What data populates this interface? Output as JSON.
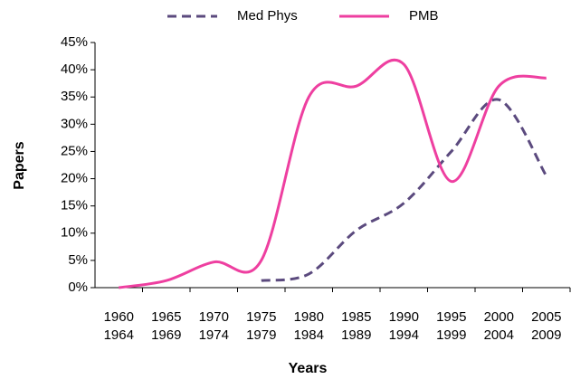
{
  "chart_data": {
    "type": "line",
    "categories": [
      [
        "1960",
        "1964"
      ],
      [
        "1965",
        "1969"
      ],
      [
        "1970",
        "1974"
      ],
      [
        "1975",
        "1979"
      ],
      [
        "1980",
        "1984"
      ],
      [
        "1985",
        "1989"
      ],
      [
        "1990",
        "1994"
      ],
      [
        "1995",
        "1999"
      ],
      [
        "2000",
        "2004"
      ],
      [
        "2005",
        "2009"
      ]
    ],
    "series": [
      {
        "name": "Med Phys",
        "color": "#5b4a7e",
        "dashed": true,
        "values": [
          null,
          null,
          null,
          1.3,
          2.5,
          10.5,
          15.5,
          25,
          34.5,
          20.5
        ]
      },
      {
        "name": "PMB",
        "color": "#ee3fa0",
        "dashed": false,
        "values": [
          0,
          1.3,
          4.7,
          5,
          35,
          37,
          41,
          19.5,
          37,
          38.5
        ]
      }
    ],
    "ylabel": "Papers",
    "xlabel": "Years",
    "ylim": [
      0,
      45
    ],
    "yticks": [
      {
        "value": 0,
        "label": "0%"
      },
      {
        "value": 5,
        "label": "5%"
      },
      {
        "value": 10,
        "label": "10%"
      },
      {
        "value": 15,
        "label": "15%"
      },
      {
        "value": 20,
        "label": "20%"
      },
      {
        "value": 25,
        "label": "25%"
      },
      {
        "value": 30,
        "label": "30%"
      },
      {
        "value": 35,
        "label": "35%"
      },
      {
        "value": 40,
        "label": "40%"
      },
      {
        "value": 45,
        "label": "45%"
      }
    ],
    "grid": false,
    "legend": "top",
    "smooth": true
  }
}
